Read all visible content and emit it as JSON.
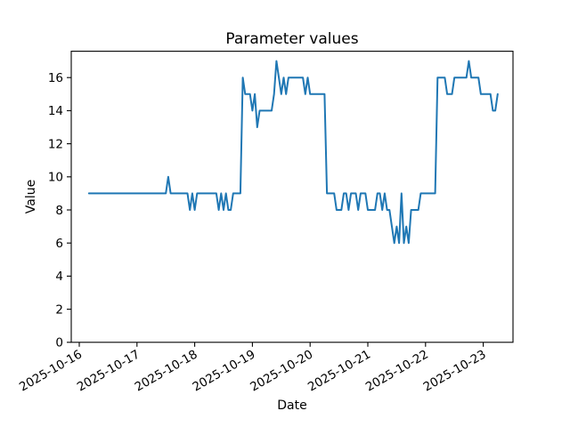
{
  "chart_data": {
    "type": "line",
    "title": "Parameter values",
    "xlabel": "Date",
    "ylabel": "Value",
    "grid": false,
    "legend": null,
    "line_color": "#1f77b4",
    "x_axis": {
      "kind": "datetime",
      "tick_labels": [
        "2025-10-16",
        "2025-10-17",
        "2025-10-18",
        "2025-10-19",
        "2025-10-20",
        "2025-10-21",
        "2025-10-22",
        "2025-10-23"
      ],
      "tick_interval_hours": 24,
      "tick_label_rotation_deg": 30
    },
    "y_axis": {
      "ticks": [
        0,
        2,
        4,
        6,
        8,
        10,
        12,
        14,
        16
      ],
      "lim": [
        0,
        17.55
      ]
    },
    "series": [
      {
        "name": "parameter-values",
        "start": "2025-10-16 04:00",
        "start_hour_offset": 4,
        "step_hours": 1,
        "values": [
          9,
          9,
          9,
          9,
          9,
          9,
          9,
          9,
          9,
          9,
          9,
          9,
          9,
          9,
          9,
          9,
          9,
          9,
          9,
          9,
          9,
          9,
          9,
          9,
          9,
          9,
          9,
          9,
          9,
          9,
          9,
          9,
          9,
          10,
          9,
          9,
          9,
          9,
          9,
          9,
          9,
          9,
          8,
          9,
          8,
          9,
          9,
          9,
          9,
          9,
          9,
          9,
          9,
          9,
          8,
          9,
          8,
          9,
          8,
          8,
          9,
          9,
          9,
          9,
          16,
          15,
          15,
          15,
          14,
          15,
          13,
          14,
          14,
          14,
          14,
          14,
          14,
          15,
          17,
          16,
          15,
          16,
          15,
          16,
          16,
          16,
          16,
          16,
          16,
          16,
          15,
          16,
          15,
          15,
          15,
          15,
          15,
          15,
          15,
          9,
          9,
          9,
          9,
          8,
          8,
          8,
          9,
          9,
          8,
          9,
          9,
          9,
          8,
          9,
          9,
          9,
          8,
          8,
          8,
          8,
          9,
          9,
          8,
          9,
          8,
          8,
          7,
          6,
          7,
          6,
          9,
          6,
          7,
          6,
          8,
          8,
          8,
          8,
          9,
          9,
          9,
          9,
          9,
          9,
          9,
          16,
          16,
          16,
          16,
          15,
          15,
          15,
          16,
          16,
          16,
          16,
          16,
          16,
          17,
          16,
          16,
          16,
          16,
          15,
          15,
          15,
          15,
          15,
          14,
          14,
          15
        ]
      }
    ]
  }
}
